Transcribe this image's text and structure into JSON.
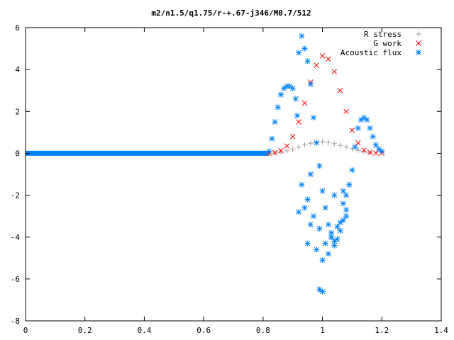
{
  "chart_data": {
    "type": "scatter",
    "title": "m2/n1.5/q1.75/r-+.67-j346/M0.7/512",
    "xlabel": "",
    "ylabel": "",
    "xlim": [
      0,
      1.4
    ],
    "ylim": [
      -8,
      6
    ],
    "x_ticks": [
      "0",
      "0.2",
      "0.4",
      "0.6",
      "0.8",
      "1",
      "1.2",
      "1.4"
    ],
    "y_ticks": [
      "6",
      "4",
      "2",
      "0",
      "-2",
      "-4",
      "-6",
      "-8"
    ],
    "grid": false,
    "legend_position": "top-right",
    "series": [
      {
        "name": "R stress",
        "marker": "plus",
        "color": "#a0a0a0",
        "x": [
          0.82,
          0.84,
          0.86,
          0.88,
          0.9,
          0.92,
          0.94,
          0.96,
          0.98,
          1.0,
          1.02,
          1.04,
          1.06,
          1.08,
          1.1,
          1.12,
          1.14,
          1.16
        ],
        "y": [
          0.0,
          0.02,
          0.06,
          0.12,
          0.2,
          0.3,
          0.4,
          0.48,
          0.53,
          0.55,
          0.52,
          0.46,
          0.38,
          0.3,
          0.22,
          0.14,
          0.08,
          0.03
        ]
      },
      {
        "name": "G work",
        "marker": "cross",
        "color": "#ff0000",
        "x": [
          0.82,
          0.84,
          0.86,
          0.88,
          0.9,
          0.92,
          0.94,
          0.96,
          0.98,
          1.0,
          1.02,
          1.04,
          1.06,
          1.08,
          1.1,
          1.12,
          1.14,
          1.16,
          1.18,
          1.2
        ],
        "y": [
          0.0,
          0.03,
          0.12,
          0.35,
          0.8,
          1.5,
          2.4,
          3.4,
          4.2,
          4.65,
          4.5,
          3.9,
          3.0,
          2.0,
          1.1,
          0.5,
          0.15,
          0.04,
          0.01,
          0.0
        ]
      },
      {
        "name": "Acoustic flux",
        "marker": "star",
        "color": "#0080ff",
        "x": [
          0.82,
          0.83,
          0.84,
          0.85,
          0.86,
          0.87,
          0.88,
          0.89,
          0.9,
          0.91,
          0.915,
          0.92,
          0.93,
          0.94,
          0.95,
          0.96,
          0.97,
          0.98,
          0.99,
          1.0,
          1.01,
          1.02,
          1.03,
          1.04,
          1.05,
          1.06,
          1.07,
          1.08,
          1.09,
          1.1,
          1.11,
          1.12,
          1.13,
          1.14,
          1.15,
          1.16,
          1.17,
          1.18,
          1.19,
          1.2,
          0.93,
          0.95,
          0.97,
          0.99,
          1.01,
          1.03,
          1.05,
          1.07,
          0.94,
          0.96,
          0.98,
          1.0,
          1.02,
          1.04,
          1.06,
          1.08,
          0.95,
          0.99,
          1.03,
          1.07,
          0.92,
          0.96,
          1.0,
          1.04,
          1.08
        ],
        "y": [
          0.1,
          0.7,
          1.5,
          2.2,
          2.8,
          3.1,
          3.2,
          3.2,
          3.1,
          2.6,
          1.8,
          4.8,
          5.6,
          5.0,
          4.4,
          3.3,
          1.7,
          0.5,
          -0.6,
          -1.8,
          -2.6,
          -3.4,
          -4.0,
          -4.4,
          -4.1,
          -3.7,
          -3.2,
          -2.7,
          -1.5,
          -0.8,
          0.3,
          1.2,
          1.6,
          1.7,
          1.6,
          1.2,
          0.8,
          0.4,
          0.2,
          0.1,
          -1.5,
          -2.2,
          -3.0,
          -3.6,
          -4.3,
          -4.0,
          -3.5,
          -2.4,
          -2.6,
          -3.4,
          -4.6,
          -5.1,
          -4.8,
          -4.2,
          -3.3,
          -2.0,
          -4.3,
          -6.5,
          -3.8,
          -1.8,
          -2.8,
          -1.0,
          -6.6,
          -2.0,
          -3.0
        ]
      }
    ],
    "baseline": {
      "x_start": 0.0,
      "x_end": 0.82,
      "y": 0.0
    }
  }
}
